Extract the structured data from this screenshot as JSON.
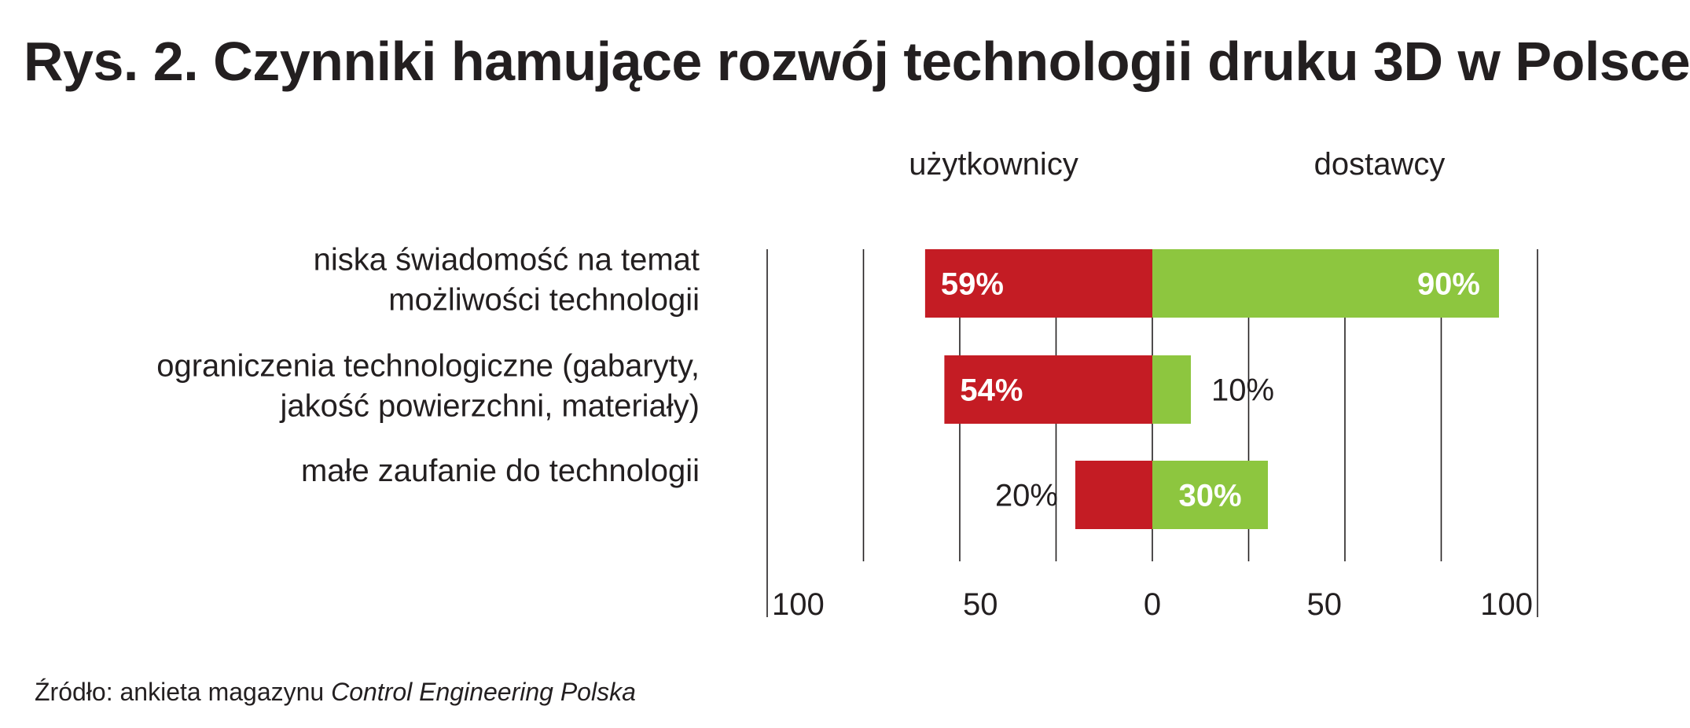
{
  "title": "Rys. 2. Czynniki hamujące rozwój technologii druku 3D w Polsce",
  "source": {
    "prefix": "Źródło: ankieta magazynu ",
    "publication": "Control Engineering Polska"
  },
  "colors": {
    "users": "#c41c24",
    "suppliers": "#8dc63f",
    "text": "#231f20",
    "grid": "#231f20",
    "bar_label_inside": "#ffffff"
  },
  "chart_data": {
    "type": "bar",
    "orientation": "horizontal",
    "layout": "diverging",
    "title": "Rys. 2. Czynniki hamujące rozwój technologii druku 3D w Polsce",
    "categories": [
      [
        "niska świadomość na temat",
        "możliwości technologii"
      ],
      [
        "ograniczenia technologiczne (gabaryty,",
        "jakość powierzchni, materiały)"
      ],
      [
        "małe zaufanie do technologii"
      ]
    ],
    "series": [
      {
        "name": "użytkownicy",
        "side": "left",
        "values": [
          59,
          54,
          20
        ],
        "labels": [
          "59%",
          "54%",
          "20%"
        ],
        "label_inside": [
          true,
          true,
          false
        ]
      },
      {
        "name": "dostawcy",
        "side": "right",
        "values": [
          90,
          10,
          30
        ],
        "labels": [
          "90%",
          "10%",
          "30%"
        ],
        "label_inside": [
          true,
          false,
          true
        ]
      }
    ],
    "xlim": [
      -100,
      100
    ],
    "gridlines": [
      -100,
      -75,
      -50,
      -25,
      0,
      25,
      50,
      75,
      100
    ],
    "tick_values": [
      -100,
      -50,
      0,
      50,
      100
    ],
    "tick_labels": [
      "100",
      "50",
      "0",
      "50",
      "100"
    ],
    "legend": "top",
    "grid": true
  }
}
